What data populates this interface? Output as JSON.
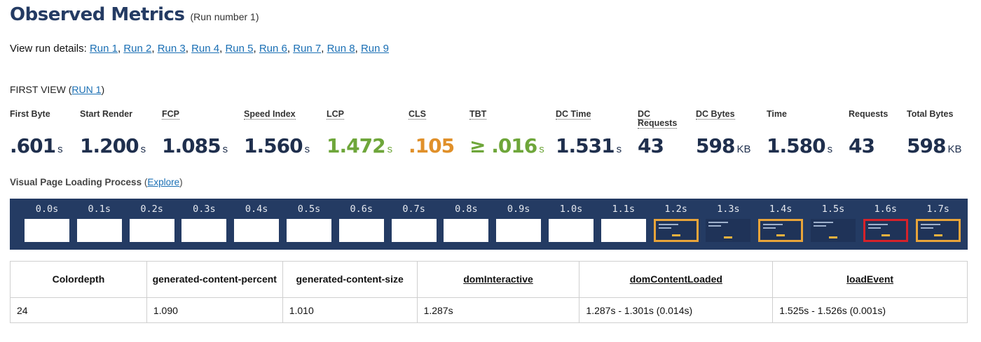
{
  "header": {
    "title": "Observed Metrics",
    "run_number": "(Run number 1)"
  },
  "run_details": {
    "label": "View run details:",
    "runs": [
      "Run 1",
      "Run 2",
      "Run 3",
      "Run 4",
      "Run 5",
      "Run 6",
      "Run 7",
      "Run 8",
      "Run 9"
    ]
  },
  "first_view": {
    "label": "FIRST VIEW (",
    "run_link": "RUN 1",
    "close": ")"
  },
  "metrics": [
    {
      "label": "First Byte",
      "value": ".601",
      "unit": "s"
    },
    {
      "label": "Start Render",
      "value": "1.200",
      "unit": "s"
    },
    {
      "label": "FCP",
      "value": "1.085",
      "unit": "s"
    },
    {
      "label": "Speed Index",
      "value": "1.560",
      "unit": "s"
    },
    {
      "label": "LCP",
      "value": "1.472",
      "unit": "s",
      "color": "#6ea63a"
    },
    {
      "label": "CLS",
      "value": ".105",
      "unit": "",
      "color": "#e0902a"
    },
    {
      "label": "TBT",
      "value": "≥ .016",
      "unit": "s",
      "color": "#6ea63a"
    },
    {
      "label": "DC Time",
      "value": "1.531",
      "unit": "s"
    },
    {
      "label": "DC Requests",
      "value": "43",
      "unit": ""
    },
    {
      "label": "DC Bytes",
      "value": "598",
      "unit": "KB"
    },
    {
      "label": "Time",
      "value": "1.580",
      "unit": "s"
    },
    {
      "label": "Requests",
      "value": "43",
      "unit": ""
    },
    {
      "label": "Total Bytes",
      "value": "598",
      "unit": "KB"
    }
  ],
  "visual": {
    "label": "Visual Page Loading Process",
    "open": "(",
    "explore": "Explore",
    "close": ")"
  },
  "filmstrip": {
    "frames": [
      {
        "time": "0.0s",
        "state": "blank"
      },
      {
        "time": "0.1s",
        "state": "blank"
      },
      {
        "time": "0.2s",
        "state": "blank"
      },
      {
        "time": "0.3s",
        "state": "blank"
      },
      {
        "time": "0.4s",
        "state": "blank"
      },
      {
        "time": "0.5s",
        "state": "blank"
      },
      {
        "time": "0.6s",
        "state": "blank"
      },
      {
        "time": "0.7s",
        "state": "blank"
      },
      {
        "time": "0.8s",
        "state": "blank"
      },
      {
        "time": "0.9s",
        "state": "blank"
      },
      {
        "time": "1.0s",
        "state": "blank"
      },
      {
        "time": "1.1s",
        "state": "blank"
      },
      {
        "time": "1.2s",
        "state": "changed"
      },
      {
        "time": "1.3s",
        "state": "rendered"
      },
      {
        "time": "1.4s",
        "state": "changed"
      },
      {
        "time": "1.5s",
        "state": "rendered"
      },
      {
        "time": "1.6s",
        "state": "lcp"
      },
      {
        "time": "1.7s",
        "state": "changed"
      }
    ],
    "colors": {
      "background": "#243b63",
      "changed": "#e8a43a",
      "lcp": "#d6222a"
    }
  },
  "timings_table": {
    "headers": [
      "Colordepth",
      "generated-content-percent",
      "generated-content-size",
      "domInteractive",
      "domContentLoaded",
      "loadEvent"
    ],
    "rows": [
      [
        "24",
        "1.090",
        "1.010",
        "1.287s",
        "1.287s - 1.301s (0.014s)",
        "1.525s - 1.526s (0.001s)"
      ]
    ]
  }
}
